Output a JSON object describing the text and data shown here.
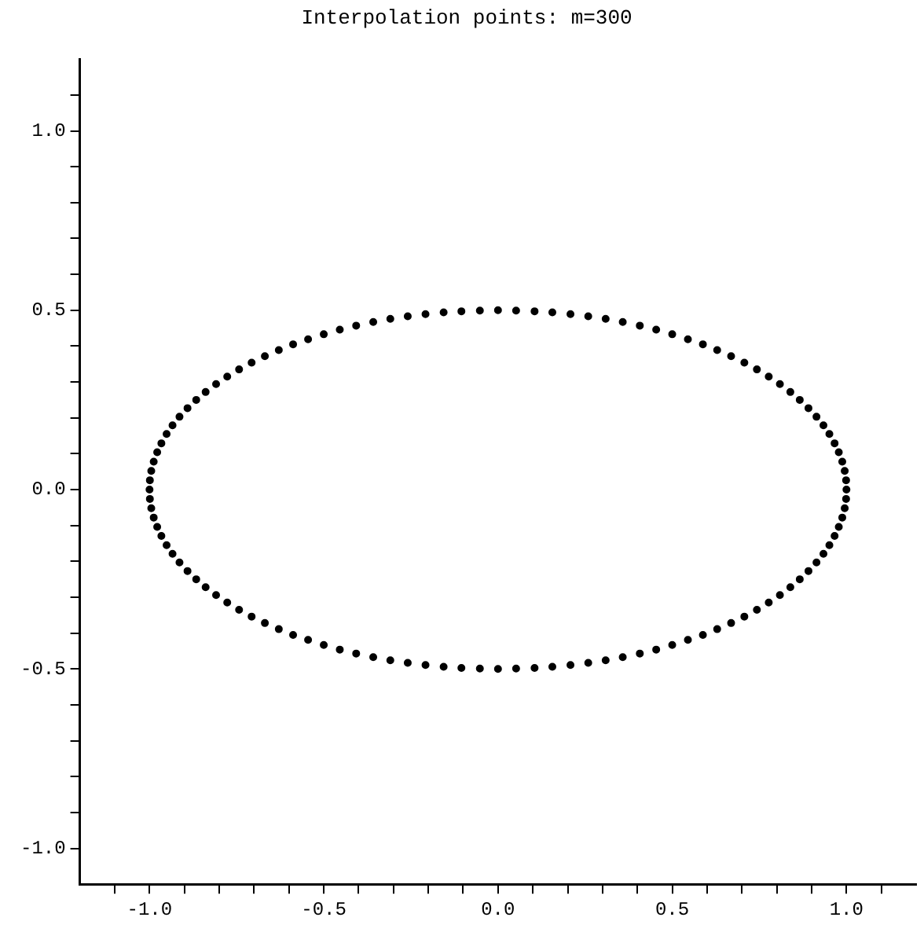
{
  "chart_data": {
    "type": "scatter",
    "title": "Interpolation points: m=300",
    "x": [
      1,
      0.999,
      0.995,
      0.988,
      0.978,
      0.966,
      0.951,
      0.934,
      0.914,
      0.891,
      0.866,
      0.839,
      0.809,
      0.777,
      0.743,
      0.707,
      0.669,
      0.629,
      0.588,
      0.545,
      0.5,
      0.454,
      0.407,
      0.358,
      0.309,
      0.259,
      0.208,
      0.156,
      0.105,
      0.052,
      0,
      -0.052,
      -0.105,
      -0.156,
      -0.208,
      -0.259,
      -0.309,
      -0.358,
      -0.407,
      -0.454,
      -0.5,
      -0.545,
      -0.588,
      -0.629,
      -0.669,
      -0.707,
      -0.743,
      -0.777,
      -0.809,
      -0.839,
      -0.866,
      -0.891,
      -0.914,
      -0.934,
      -0.951,
      -0.966,
      -0.978,
      -0.988,
      -0.995,
      -0.999,
      -1,
      -0.999,
      -0.995,
      -0.988,
      -0.978,
      -0.966,
      -0.951,
      -0.934,
      -0.914,
      -0.891,
      -0.866,
      -0.839,
      -0.809,
      -0.777,
      -0.743,
      -0.707,
      -0.669,
      -0.629,
      -0.588,
      -0.545,
      -0.5,
      -0.454,
      -0.407,
      -0.358,
      -0.309,
      -0.259,
      -0.208,
      -0.156,
      -0.105,
      -0.052,
      0,
      0.052,
      0.105,
      0.156,
      0.208,
      0.259,
      0.309,
      0.358,
      0.407,
      0.454,
      0.5,
      0.545,
      0.588,
      0.629,
      0.669,
      0.707,
      0.743,
      0.777,
      0.809,
      0.839,
      0.866,
      0.891,
      0.914,
      0.934,
      0.951,
      0.966,
      0.978,
      0.988,
      0.995,
      0.999
    ],
    "values": [
      0,
      0.026,
      0.052,
      0.078,
      0.104,
      0.129,
      0.155,
      0.179,
      0.203,
      0.227,
      0.25,
      0.272,
      0.294,
      0.315,
      0.335,
      0.354,
      0.372,
      0.389,
      0.405,
      0.419,
      0.433,
      0.446,
      0.457,
      0.467,
      0.476,
      0.483,
      0.489,
      0.494,
      0.497,
      0.499,
      0.5,
      0.499,
      0.497,
      0.494,
      0.489,
      0.483,
      0.476,
      0.467,
      0.457,
      0.446,
      0.433,
      0.419,
      0.405,
      0.389,
      0.372,
      0.354,
      0.335,
      0.315,
      0.294,
      0.272,
      0.25,
      0.227,
      0.203,
      0.179,
      0.155,
      0.129,
      0.104,
      0.078,
      0.052,
      0.026,
      0,
      -0.026,
      -0.052,
      -0.078,
      -0.104,
      -0.129,
      -0.155,
      -0.179,
      -0.203,
      -0.227,
      -0.25,
      -0.272,
      -0.294,
      -0.315,
      -0.335,
      -0.354,
      -0.372,
      -0.389,
      -0.405,
      -0.419,
      -0.433,
      -0.446,
      -0.457,
      -0.467,
      -0.476,
      -0.483,
      -0.489,
      -0.494,
      -0.497,
      -0.499,
      -0.5,
      -0.499,
      -0.497,
      -0.494,
      -0.489,
      -0.483,
      -0.476,
      -0.467,
      -0.457,
      -0.446,
      -0.433,
      -0.419,
      -0.405,
      -0.389,
      -0.372,
      -0.354,
      -0.335,
      -0.315,
      -0.294,
      -0.272,
      -0.25,
      -0.227,
      -0.203,
      -0.179,
      -0.155,
      -0.129,
      -0.104,
      -0.078,
      -0.052,
      -0.026
    ],
    "color": "#000000",
    "marker": "circle",
    "xlim": [
      -1.2,
      1.2
    ],
    "ylim": [
      -1.1,
      1.2
    ],
    "xticks": [
      {
        "value": -1.1,
        "label": null
      },
      {
        "value": -1,
        "label": "-1.0"
      },
      {
        "value": -0.9,
        "label": null
      },
      {
        "value": -0.8,
        "label": null
      },
      {
        "value": -0.7,
        "label": null
      },
      {
        "value": -0.6,
        "label": null
      },
      {
        "value": -0.5,
        "label": "-0.5"
      },
      {
        "value": -0.4,
        "label": null
      },
      {
        "value": -0.3,
        "label": null
      },
      {
        "value": -0.2,
        "label": null
      },
      {
        "value": -0.1,
        "label": null
      },
      {
        "value": 0,
        "label": "0.0"
      },
      {
        "value": 0.1,
        "label": null
      },
      {
        "value": 0.2,
        "label": null
      },
      {
        "value": 0.3,
        "label": null
      },
      {
        "value": 0.4,
        "label": null
      },
      {
        "value": 0.5,
        "label": "0.5"
      },
      {
        "value": 0.6,
        "label": null
      },
      {
        "value": 0.7,
        "label": null
      },
      {
        "value": 0.8,
        "label": null
      },
      {
        "value": 0.9,
        "label": null
      },
      {
        "value": 1,
        "label": "1.0"
      },
      {
        "value": 1.1,
        "label": null
      }
    ],
    "yticks": [
      {
        "value": -1,
        "label": "-1.0"
      },
      {
        "value": -0.9,
        "label": null
      },
      {
        "value": -0.8,
        "label": null
      },
      {
        "value": -0.7,
        "label": null
      },
      {
        "value": -0.6,
        "label": null
      },
      {
        "value": -0.5,
        "label": "-0.5"
      },
      {
        "value": -0.4,
        "label": null
      },
      {
        "value": -0.3,
        "label": null
      },
      {
        "value": -0.2,
        "label": null
      },
      {
        "value": -0.1,
        "label": null
      },
      {
        "value": 0,
        "label": "0.0"
      },
      {
        "value": 0.1,
        "label": null
      },
      {
        "value": 0.2,
        "label": null
      },
      {
        "value": 0.3,
        "label": null
      },
      {
        "value": 0.4,
        "label": null
      },
      {
        "value": 0.5,
        "label": "0.5"
      },
      {
        "value": 0.6,
        "label": null
      },
      {
        "value": 0.7,
        "label": null
      },
      {
        "value": 0.8,
        "label": null
      },
      {
        "value": 0.9,
        "label": null
      },
      {
        "value": 1,
        "label": "1.0"
      },
      {
        "value": 1.1,
        "label": null
      }
    ],
    "grid": false,
    "legend": false
  }
}
